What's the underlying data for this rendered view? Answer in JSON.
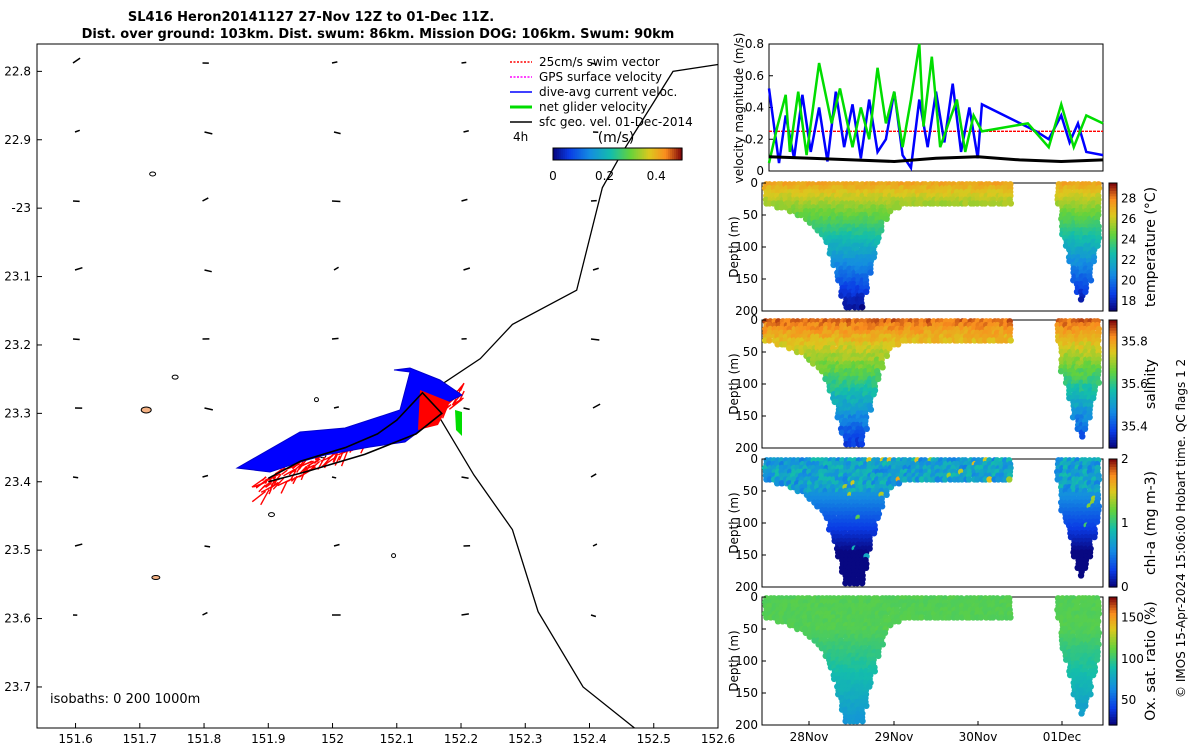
{
  "title": {
    "line1": "SL416 Heron20141127 27-Nov 12Z to 01-Dec 11Z.",
    "line2": "Dist. over ground: 103km. Dist. swum: 86km. Mission DOG: 106km. Swum: 90km"
  },
  "credit": "© IMOS 15-Apr-2024 15:06:00 Hobart time. QC flags 1  2",
  "chart_data": [
    {
      "type": "map",
      "name": "glider-track-map",
      "x_ticks": [
        151.6,
        151.7,
        151.8,
        151.9,
        152,
        152.1,
        152.2,
        152.3,
        152.4,
        152.5,
        152.6
      ],
      "x_tick_labels": [
        "151.6",
        "151.7",
        "151.8",
        "151.9",
        "152",
        "152.1",
        "152.2",
        "152.3",
        "152.4",
        "152.5",
        "152.6"
      ],
      "y_ticks": [
        -22.8,
        -22.9,
        -23.0,
        -23.1,
        -23.2,
        -23.3,
        -23.4,
        -23.5,
        -23.6,
        -23.7
      ],
      "y_tick_labels": [
        "22.8",
        "22.9",
        "-23",
        "23.1",
        "23.2",
        "23.3",
        "23.4",
        "23.5",
        "23.6",
        "23.7"
      ],
      "xlim": [
        151.54,
        152.6
      ],
      "ylim": [
        -23.76,
        -22.76
      ],
      "legend": [
        "25cm/s swim vector",
        "GPS surface velocity",
        "dive-avg current veloc.",
        "net glider velocity",
        "sfc geo. vel. 01-Dec-2014"
      ],
      "legend_colors": [
        "#ff0000",
        "#ff00ff",
        "#0000ff",
        "#00dd00",
        "#000000"
      ],
      "colorbar_time_label": "4h",
      "colorbar_units": "(m/s)",
      "colorbar_ticks": [
        "0",
        "0.2",
        "0.4"
      ],
      "colorbar_range": [
        0,
        0.5
      ],
      "isobath_label": "isobaths: 0   200   1000m",
      "track": [
        [
          151.9,
          -23.395
        ],
        [
          151.95,
          -23.37
        ],
        [
          152.02,
          -23.35
        ],
        [
          152.07,
          -23.33
        ],
        [
          152.1,
          -23.31
        ],
        [
          152.14,
          -23.27
        ],
        [
          152.17,
          -23.3
        ],
        [
          152.13,
          -23.33
        ],
        [
          152.05,
          -23.36
        ],
        [
          151.96,
          -23.385
        ],
        [
          151.9,
          -23.4
        ]
      ],
      "isobath_1000m": [
        [
          152.6,
          -22.79
        ],
        [
          152.53,
          -22.8
        ],
        [
          152.45,
          -22.92
        ],
        [
          152.42,
          -22.97
        ],
        [
          152.38,
          -23.12
        ],
        [
          152.28,
          -23.17
        ],
        [
          152.23,
          -23.22
        ],
        [
          152.15,
          -23.27
        ],
        [
          152.15,
          -23.28
        ],
        [
          152.22,
          -23.39
        ],
        [
          152.28,
          -23.47
        ],
        [
          152.32,
          -23.59
        ],
        [
          152.39,
          -23.7
        ],
        [
          152.47,
          -23.76
        ]
      ]
    },
    {
      "type": "line",
      "name": "velocity-magnitude",
      "ylabel": "velocity magnitude (m/s)",
      "ylim": [
        0,
        0.8
      ],
      "y_ticks": [
        0,
        0.2,
        0.4,
        0.6,
        0.8
      ],
      "y_tick_labels": [
        "0",
        "0.2",
        "0.4",
        "0.6",
        "0.8"
      ],
      "xlim_days": [
        27.5,
        31.5
      ],
      "series": [
        {
          "name": "swim speed",
          "color": "#ff0000",
          "x": [
            27.5,
            31.5
          ],
          "values": [
            0.25,
            0.25
          ]
        },
        {
          "name": "dive-avg current",
          "color": "#0000ff",
          "x": [
            27.5,
            27.62,
            27.7,
            27.8,
            27.9,
            28.0,
            28.1,
            28.2,
            28.3,
            28.4,
            28.5,
            28.6,
            28.7,
            28.8,
            28.9,
            29.0,
            29.1,
            29.2,
            29.3,
            29.4,
            29.5,
            29.6,
            29.7,
            29.8,
            29.9,
            30.0,
            30.05,
            30.7,
            30.85,
            31.0,
            31.1,
            31.2,
            31.3,
            31.5
          ],
          "values": [
            0.52,
            0.05,
            0.35,
            0.08,
            0.48,
            0.12,
            0.4,
            0.06,
            0.5,
            0.15,
            0.42,
            0.08,
            0.45,
            0.12,
            0.2,
            0.5,
            0.1,
            0.02,
            0.45,
            0.15,
            0.5,
            0.18,
            0.55,
            0.12,
            0.4,
            0.08,
            0.42,
            0.25,
            0.2,
            0.35,
            0.18,
            0.3,
            0.12,
            0.1
          ]
        },
        {
          "name": "net glider velocity",
          "color": "#00dd00",
          "x": [
            27.5,
            27.6,
            27.7,
            27.75,
            27.85,
            27.95,
            28.1,
            28.25,
            28.35,
            28.5,
            28.6,
            28.7,
            28.8,
            28.9,
            29.0,
            29.1,
            29.2,
            29.3,
            29.35,
            29.45,
            29.55,
            29.65,
            29.75,
            29.85,
            29.95,
            30.05,
            30.6,
            30.85,
            31.0,
            31.15,
            31.3,
            31.5
          ],
          "values": [
            0.05,
            0.28,
            0.48,
            0.12,
            0.5,
            0.1,
            0.68,
            0.3,
            0.52,
            0.15,
            0.4,
            0.2,
            0.65,
            0.3,
            0.5,
            0.15,
            0.45,
            0.8,
            0.28,
            0.72,
            0.15,
            0.3,
            0.45,
            0.12,
            0.35,
            0.25,
            0.3,
            0.15,
            0.42,
            0.15,
            0.35,
            0.3
          ]
        },
        {
          "name": "sfc geo. vel.",
          "color": "#000000",
          "x": [
            27.5,
            28.0,
            28.5,
            29.0,
            29.5,
            30.0,
            30.5,
            31.0,
            31.5
          ],
          "values": [
            0.09,
            0.08,
            0.07,
            0.06,
            0.08,
            0.09,
            0.07,
            0.06,
            0.07
          ]
        }
      ]
    },
    {
      "type": "heatmap",
      "name": "temperature-section",
      "ylabel": "Depth (m)",
      "colorbar_label": "temperature (°C)",
      "colorbar_ticks": [
        "28",
        "26",
        "24",
        "22",
        "20",
        "18"
      ],
      "range": [
        17,
        29.5
      ],
      "surface_value": 27,
      "deep_value": 17.5,
      "y_ticks": [
        "0",
        "50",
        "100",
        "150",
        "200"
      ]
    },
    {
      "type": "heatmap",
      "name": "salinity-section",
      "ylabel": "Depth (m)",
      "colorbar_label": "salinity",
      "colorbar_ticks": [
        "35.8",
        "35.6",
        "35.4"
      ],
      "range": [
        35.3,
        35.9
      ],
      "surface_value": 35.82,
      "deep_value": 35.38,
      "y_ticks": [
        "0",
        "50",
        "100",
        "150",
        "200"
      ]
    },
    {
      "type": "heatmap",
      "name": "chl-a-section",
      "ylabel": "Depth (m)",
      "colorbar_label": "chl-a (mg m-3)",
      "colorbar_ticks": [
        "2",
        "1",
        "0"
      ],
      "range": [
        0,
        2
      ],
      "surface_value": 0.55,
      "deep_value": 0.05,
      "y_ticks": [
        "0",
        "50",
        "100",
        "150",
        "200"
      ]
    },
    {
      "type": "heatmap",
      "name": "oxygen-section",
      "ylabel": "Depth (m)",
      "colorbar_label": "Ox. sat. ratio (%)",
      "colorbar_ticks": [
        "150",
        "100",
        "50"
      ],
      "range": [
        20,
        175
      ],
      "surface_value": 110,
      "deep_value": 75,
      "y_ticks": [
        "0",
        "50",
        "100",
        "150",
        "200"
      ],
      "x_tick_labels": [
        "28Nov",
        "29Nov",
        "30Nov",
        "01Dec"
      ]
    }
  ]
}
